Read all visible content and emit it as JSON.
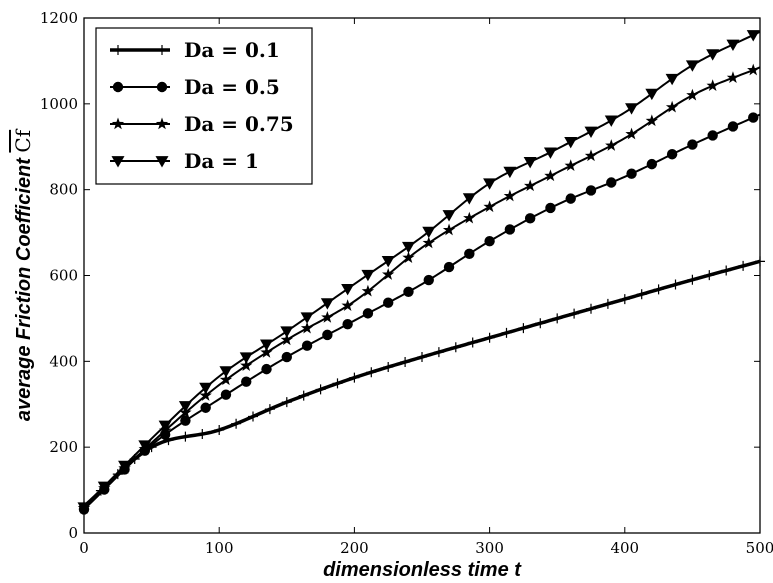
{
  "chart_data": {
    "type": "line",
    "xlabel": "dimensionless time t",
    "ylabel_prefix": "average Friction Coefficient ",
    "ylabel_symbol": "Cf",
    "xlim": [
      0,
      500
    ],
    "ylim": [
      0,
      1200
    ],
    "x_ticks": [
      "0",
      "100",
      "200",
      "300",
      "400",
      "500"
    ],
    "y_ticks": [
      "0",
      "200",
      "400",
      "600",
      "800",
      "1000",
      "1200"
    ],
    "grid": false,
    "legend_position": "top-left",
    "series": [
      {
        "name": "Da = 0.1",
        "marker": "plus",
        "line_width": 3.5,
        "x": [
          0,
          50,
          100,
          150,
          200,
          250,
          300,
          350,
          400,
          450,
          500
        ],
        "values": [
          62,
          200,
          240,
          305,
          362,
          410,
          455,
          500,
          545,
          590,
          633
        ]
      },
      {
        "name": "Da = 0.5",
        "marker": "circle",
        "line_width": 2,
        "x": [
          0,
          50,
          100,
          150,
          200,
          250,
          300,
          350,
          400,
          450,
          500
        ],
        "values": [
          55,
          205,
          312,
          410,
          495,
          580,
          680,
          765,
          830,
          905,
          975
        ]
      },
      {
        "name": "Da = 0.75",
        "marker": "star",
        "line_width": 2,
        "x": [
          0,
          50,
          100,
          150,
          200,
          250,
          300,
          350,
          400,
          450,
          500
        ],
        "values": [
          58,
          210,
          345,
          450,
          540,
          665,
          760,
          840,
          920,
          1020,
          1085
        ]
      },
      {
        "name": "Da = 1",
        "marker": "triangle-down",
        "line_width": 2,
        "x": [
          0,
          50,
          100,
          150,
          200,
          250,
          300,
          350,
          400,
          450,
          500
        ],
        "values": [
          60,
          220,
          365,
          470,
          580,
          690,
          815,
          895,
          980,
          1090,
          1168
        ]
      }
    ]
  }
}
